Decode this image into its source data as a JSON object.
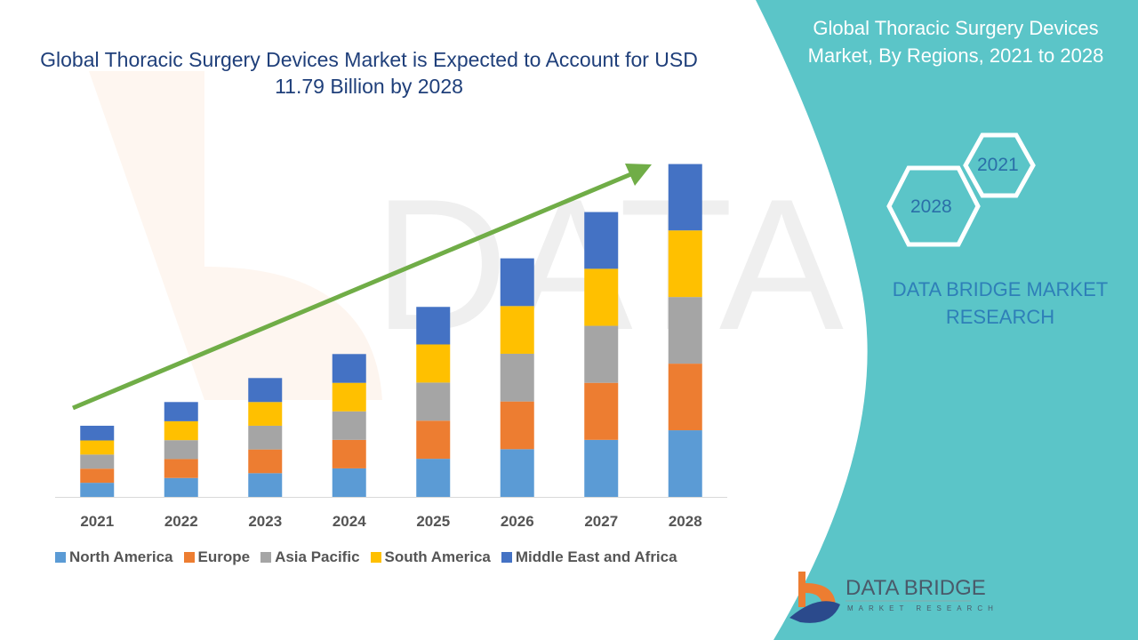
{
  "title": "Global Thoracic Surgery Devices Market is Expected to Account for USD 11.79 Billion by 2028",
  "side_panel": {
    "title": "Global Thoracic Surgery Devices Market, By Regions, 2021 to 2028",
    "hex_labels": [
      "2021",
      "2028"
    ],
    "brand_text": "DATA BRIDGE MARKET RESEARCH",
    "logo_text": "DATA BRIDGE",
    "logo_subtext": "MARKET RESEARCH"
  },
  "colors": {
    "panel": "#5bc5c8",
    "arrow": "#70ad47"
  },
  "chart_data": {
    "type": "bar",
    "stacked": true,
    "title": "Global Thoracic Surgery Devices Market is Expected to Account for USD 11.79 Billion by 2028",
    "categories": [
      "2021",
      "2022",
      "2023",
      "2024",
      "2025",
      "2026",
      "2027",
      "2028"
    ],
    "series": [
      {
        "name": "North America",
        "color": "#5b9bd5",
        "values": [
          0.5,
          0.67,
          0.84,
          1.01,
          1.35,
          1.69,
          2.02,
          2.36
        ]
      },
      {
        "name": "Europe",
        "color": "#ed7d31",
        "values": [
          0.5,
          0.67,
          0.84,
          1.01,
          1.35,
          1.69,
          2.02,
          2.36
        ]
      },
      {
        "name": "Asia Pacific",
        "color": "#a5a5a5",
        "values": [
          0.5,
          0.67,
          0.84,
          1.01,
          1.35,
          1.69,
          2.02,
          2.36
        ]
      },
      {
        "name": "South America",
        "color": "#ffc000",
        "values": [
          0.5,
          0.67,
          0.84,
          1.01,
          1.35,
          1.69,
          2.02,
          2.36
        ]
      },
      {
        "name": "Middle East and Africa",
        "color": "#4472c4",
        "values": [
          0.52,
          0.68,
          0.85,
          1.02,
          1.33,
          1.69,
          2.01,
          2.35
        ]
      }
    ],
    "ylim": [
      0,
      12.5
    ],
    "grid": false,
    "legend": "bottom",
    "trend_arrow": true
  }
}
